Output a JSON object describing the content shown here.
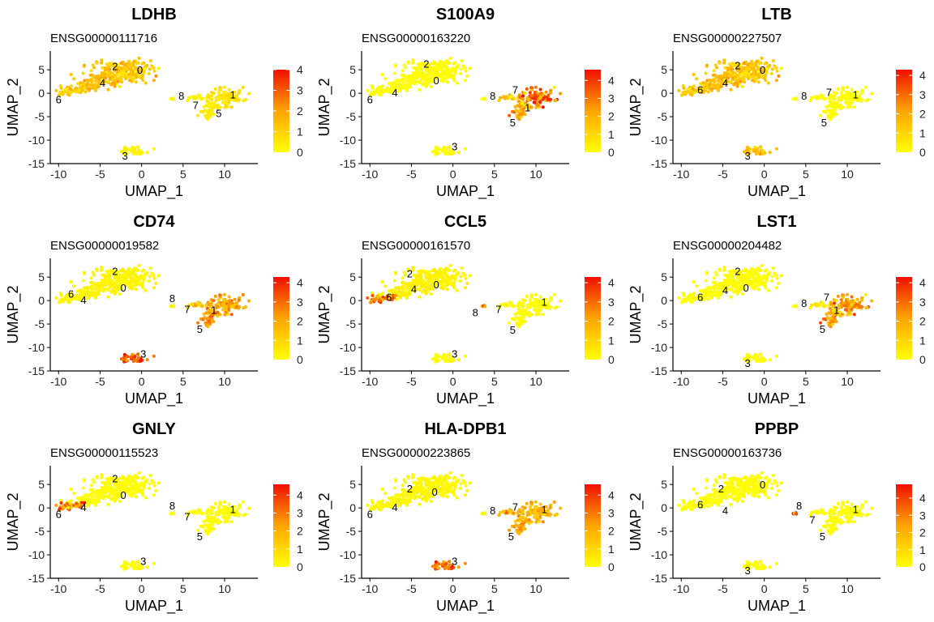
{
  "chart_data": [
    {
      "type": "scatter",
      "title": "LDHB",
      "subtitle": "ENSG00000111716",
      "xlabel": "UMAP_1",
      "ylabel": "UMAP_2",
      "xlim": [
        -11,
        14
      ],
      "ylim": [
        -15,
        9
      ],
      "xticks": [
        -10,
        -5,
        0,
        5,
        10
      ],
      "yticks": [
        -15,
        -10,
        -5,
        0,
        5
      ],
      "legend": {
        "max": 4,
        "ticks": [
          0,
          1,
          2,
          3,
          4
        ],
        "position": "right"
      },
      "cluster_labels": [
        {
          "text": "2",
          "x": -3.2,
          "y": 5.8
        },
        {
          "text": "0",
          "x": -0.2,
          "y": 5.0
        },
        {
          "text": "4",
          "x": -4.7,
          "y": 2.3
        },
        {
          "text": "6",
          "x": -10,
          "y": -1.3
        },
        {
          "text": "8",
          "x": 4.8,
          "y": -0.5
        },
        {
          "text": "7",
          "x": 6.5,
          "y": -2.5
        },
        {
          "text": "1",
          "x": 11,
          "y": -0.2
        },
        {
          "text": "5",
          "x": 9.3,
          "y": -4.2
        },
        {
          "text": "3",
          "x": -2,
          "y": -13.3
        }
      ],
      "expression": {
        "main": 1.3,
        "c6": 1.0,
        "c8": 0.3,
        "c7": 0.2,
        "c1": 0.6,
        "c5": 0.4,
        "c3": 0.2
      }
    },
    {
      "type": "scatter",
      "title": "S100A9",
      "subtitle": "ENSG00000163220",
      "xlabel": "UMAP_1",
      "ylabel": "UMAP_2",
      "xlim": [
        -11,
        14
      ],
      "ylim": [
        -15,
        9
      ],
      "xticks": [
        -10,
        -5,
        0,
        5,
        10
      ],
      "yticks": [
        -15,
        -10,
        -5,
        0,
        5
      ],
      "legend": {
        "max": 4.6,
        "ticks": [
          0,
          1,
          2,
          3,
          4
        ],
        "position": "right"
      },
      "cluster_labels": [
        {
          "text": "2",
          "x": -3.2,
          "y": 6.3
        },
        {
          "text": "0",
          "x": -2,
          "y": 2.8
        },
        {
          "text": "6",
          "x": -10,
          "y": -1.3
        },
        {
          "text": "4",
          "x": -7,
          "y": 0.2
        },
        {
          "text": "8",
          "x": 4.8,
          "y": -0.5
        },
        {
          "text": "7",
          "x": 7.5,
          "y": 0.8
        },
        {
          "text": "1",
          "x": 9,
          "y": -3.0
        },
        {
          "text": "5",
          "x": 7.2,
          "y": -6.2
        },
        {
          "text": "3",
          "x": 0.2,
          "y": -11.3
        }
      ],
      "expression": {
        "main": 0.05,
        "c6": 0.05,
        "c8": 0.1,
        "c7": 1.6,
        "c1": 3.2,
        "c5": 2.0,
        "c3": 0.05
      }
    },
    {
      "type": "scatter",
      "title": "LTB",
      "subtitle": "ENSG00000227507",
      "xlabel": "UMAP_1",
      "ylabel": "UMAP_2",
      "xlim": [
        -11,
        14
      ],
      "ylim": [
        -15,
        9
      ],
      "xticks": [
        -10,
        -5,
        0,
        5,
        10
      ],
      "yticks": [
        -15,
        -10,
        -5,
        0,
        5
      ],
      "legend": {
        "max": 4.3,
        "ticks": [
          0,
          1,
          2,
          3,
          4
        ],
        "position": "right"
      },
      "cluster_labels": [
        {
          "text": "2",
          "x": -3.2,
          "y": 6.0
        },
        {
          "text": "0",
          "x": -0.2,
          "y": 5.0
        },
        {
          "text": "6",
          "x": -7.7,
          "y": 0.8
        },
        {
          "text": "4",
          "x": -4.7,
          "y": 2.3
        },
        {
          "text": "8",
          "x": 4.8,
          "y": -0.5
        },
        {
          "text": "7",
          "x": 7.8,
          "y": 0.3
        },
        {
          "text": "1",
          "x": 11,
          "y": -0.2
        },
        {
          "text": "5",
          "x": 7.2,
          "y": -6.2
        },
        {
          "text": "3",
          "x": -2,
          "y": -13.3
        }
      ],
      "expression": {
        "main": 1.4,
        "c6": 1.2,
        "c8": 0.05,
        "c7": 0.05,
        "c1": 0.05,
        "c5": 0.05,
        "c3": 1.6
      }
    },
    {
      "type": "scatter",
      "title": "CD74",
      "subtitle": "ENSG00000019582",
      "xlabel": "UMAP_1",
      "ylabel": "UMAP_2",
      "xlim": [
        -11,
        14
      ],
      "ylim": [
        -15,
        9
      ],
      "xticks": [
        -10,
        -5,
        0,
        5,
        10
      ],
      "yticks": [
        -15,
        -10,
        -5,
        0,
        5
      ],
      "legend": {
        "max": 4.3,
        "ticks": [
          0,
          1,
          2,
          3,
          4
        ],
        "position": "right"
      },
      "cluster_labels": [
        {
          "text": "2",
          "x": -3.2,
          "y": 6.3
        },
        {
          "text": "0",
          "x": -2.2,
          "y": 2.8
        },
        {
          "text": "6",
          "x": -8.5,
          "y": 1.5
        },
        {
          "text": "4",
          "x": -7,
          "y": 0.2
        },
        {
          "text": "8",
          "x": 3.7,
          "y": 0.5
        },
        {
          "text": "7",
          "x": 5.5,
          "y": -1.8
        },
        {
          "text": "1",
          "x": 8.7,
          "y": -2.0
        },
        {
          "text": "5",
          "x": 7,
          "y": -6.0
        },
        {
          "text": "3",
          "x": 0.2,
          "y": -11.3
        }
      ],
      "expression": {
        "main": 0.25,
        "c6": 0.2,
        "c8": 0.4,
        "c7": 1.2,
        "c1": 2.0,
        "c5": 2.2,
        "c3": 3.0
      }
    },
    {
      "type": "scatter",
      "title": "CCL5",
      "subtitle": "ENSG00000161570",
      "xlabel": "UMAP_1",
      "ylabel": "UMAP_2",
      "xlim": [
        -11,
        14
      ],
      "ylim": [
        -15,
        9
      ],
      "xticks": [
        -10,
        -5,
        0,
        5,
        10
      ],
      "yticks": [
        -15,
        -10,
        -5,
        0,
        5
      ],
      "legend": {
        "max": 4.3,
        "ticks": [
          0,
          1,
          2,
          3,
          4
        ],
        "position": "right"
      },
      "cluster_labels": [
        {
          "text": "2",
          "x": -5.2,
          "y": 5.8
        },
        {
          "text": "0",
          "x": -2,
          "y": 3.5
        },
        {
          "text": "4",
          "x": -4.7,
          "y": 2.5
        },
        {
          "text": "6",
          "x": -7.7,
          "y": 0.8
        },
        {
          "text": "8",
          "x": 2.7,
          "y": -2.5
        },
        {
          "text": "7",
          "x": 5.5,
          "y": -1.8
        },
        {
          "text": "1",
          "x": 11,
          "y": -0.2
        },
        {
          "text": "5",
          "x": 7.2,
          "y": -6.2
        },
        {
          "text": "3",
          "x": 0.2,
          "y": -11.3
        }
      ],
      "expression": {
        "main": 0.3,
        "c6": 2.6,
        "c8": 2.5,
        "c7": 0.1,
        "c1": 0.05,
        "c5": 0.05,
        "c3": 0.05
      }
    },
    {
      "type": "scatter",
      "title": "LST1",
      "subtitle": "ENSG00000204482",
      "xlabel": "UMAP_1",
      "ylabel": "UMAP_2",
      "xlim": [
        -11,
        14
      ],
      "ylim": [
        -15,
        9
      ],
      "xticks": [
        -10,
        -5,
        0,
        5,
        10
      ],
      "yticks": [
        -15,
        -10,
        -5,
        0,
        5
      ],
      "legend": {
        "max": 4.3,
        "ticks": [
          0,
          1,
          2,
          3,
          4
        ],
        "position": "right"
      },
      "cluster_labels": [
        {
          "text": "2",
          "x": -3.2,
          "y": 6.3
        },
        {
          "text": "0",
          "x": -2.2,
          "y": 2.8
        },
        {
          "text": "4",
          "x": -4.7,
          "y": 2.3
        },
        {
          "text": "6",
          "x": -7.7,
          "y": 0.8
        },
        {
          "text": "8",
          "x": 4.8,
          "y": -0.5
        },
        {
          "text": "7",
          "x": 7.5,
          "y": 0.8
        },
        {
          "text": "1",
          "x": 8.7,
          "y": -2.0
        },
        {
          "text": "5",
          "x": 7,
          "y": -6.0
        },
        {
          "text": "3",
          "x": -2,
          "y": -13.3
        }
      ],
      "expression": {
        "main": 0.05,
        "c6": 0.05,
        "c8": 0.1,
        "c7": 0.6,
        "c1": 2.2,
        "c5": 2.0,
        "c3": 0.05
      }
    },
    {
      "type": "scatter",
      "title": "GNLY",
      "subtitle": "ENSG00000115523",
      "xlabel": "UMAP_1",
      "ylabel": "UMAP_2",
      "xlim": [
        -11,
        14
      ],
      "ylim": [
        -15,
        9
      ],
      "xticks": [
        -10,
        -5,
        0,
        5,
        10
      ],
      "yticks": [
        -15,
        -10,
        -5,
        0,
        5
      ],
      "legend": {
        "max": 4.6,
        "ticks": [
          0,
          1,
          2,
          3,
          4
        ],
        "position": "right"
      },
      "cluster_labels": [
        {
          "text": "2",
          "x": -3.2,
          "y": 6.3
        },
        {
          "text": "0",
          "x": -2.2,
          "y": 2.8
        },
        {
          "text": "4",
          "x": -7,
          "y": 0.2
        },
        {
          "text": "6",
          "x": -10,
          "y": -1.3
        },
        {
          "text": "8",
          "x": 3.7,
          "y": 0.5
        },
        {
          "text": "7",
          "x": 5.5,
          "y": -1.8
        },
        {
          "text": "1",
          "x": 11,
          "y": -0.2
        },
        {
          "text": "5",
          "x": 7,
          "y": -6.0
        },
        {
          "text": "3",
          "x": 0.2,
          "y": -11.3
        }
      ],
      "expression": {
        "main": 0.05,
        "c6": 3.0,
        "c8": 0.1,
        "c7": 0.05,
        "c1": 0.05,
        "c5": 0.05,
        "c3": 0.05
      }
    },
    {
      "type": "scatter",
      "title": "HLA-DPB1",
      "subtitle": "ENSG00000223865",
      "xlabel": "UMAP_1",
      "ylabel": "UMAP_2",
      "xlim": [
        -11,
        14
      ],
      "ylim": [
        -15,
        9
      ],
      "xticks": [
        -10,
        -5,
        0,
        5,
        10
      ],
      "yticks": [
        -15,
        -10,
        -5,
        0,
        5
      ],
      "legend": {
        "max": 4.6,
        "ticks": [
          0,
          1,
          2,
          3,
          4
        ],
        "position": "right"
      },
      "cluster_labels": [
        {
          "text": "2",
          "x": -5.2,
          "y": 4.2
        },
        {
          "text": "0",
          "x": -2.2,
          "y": 3.5
        },
        {
          "text": "4",
          "x": -7,
          "y": 0.2
        },
        {
          "text": "6",
          "x": -10,
          "y": -1.3
        },
        {
          "text": "8",
          "x": 4.8,
          "y": -0.5
        },
        {
          "text": "7",
          "x": 7.5,
          "y": 0.3
        },
        {
          "text": "1",
          "x": 11,
          "y": -0.2
        },
        {
          "text": "5",
          "x": 7,
          "y": -6.0
        },
        {
          "text": "3",
          "x": 0.2,
          "y": -11.3
        }
      ],
      "expression": {
        "main": 0.2,
        "c6": 0.2,
        "c8": 0.3,
        "c7": 1.8,
        "c1": 1.8,
        "c5": 2.0,
        "c3": 2.8
      }
    },
    {
      "type": "scatter",
      "title": "PPBP",
      "subtitle": "ENSG00000163736",
      "xlabel": "UMAP_1",
      "ylabel": "UMAP_2",
      "xlim": [
        -11,
        14
      ],
      "ylim": [
        -15,
        9
      ],
      "xticks": [
        -10,
        -5,
        0,
        5,
        10
      ],
      "yticks": [
        -15,
        -10,
        -5,
        0,
        5
      ],
      "legend": {
        "max": 4.8,
        "ticks": [
          0,
          1,
          2,
          3,
          4
        ],
        "position": "right"
      },
      "cluster_labels": [
        {
          "text": "2",
          "x": -5.2,
          "y": 4.2
        },
        {
          "text": "0",
          "x": -0.2,
          "y": 5.0
        },
        {
          "text": "6",
          "x": -7.7,
          "y": 0.8
        },
        {
          "text": "4",
          "x": -4.7,
          "y": -0.5
        },
        {
          "text": "8",
          "x": 4.2,
          "y": 0.5
        },
        {
          "text": "7",
          "x": 5.8,
          "y": -2.5
        },
        {
          "text": "1",
          "x": 11,
          "y": -0.2
        },
        {
          "text": "5",
          "x": 7,
          "y": -6.0
        },
        {
          "text": "3",
          "x": -2,
          "y": -13.3
        }
      ],
      "expression": {
        "main": 0.0,
        "c6": 0.0,
        "c8": 4.5,
        "c7": 0.0,
        "c1": 0.0,
        "c5": 0.0,
        "c3": 0.0
      }
    }
  ]
}
